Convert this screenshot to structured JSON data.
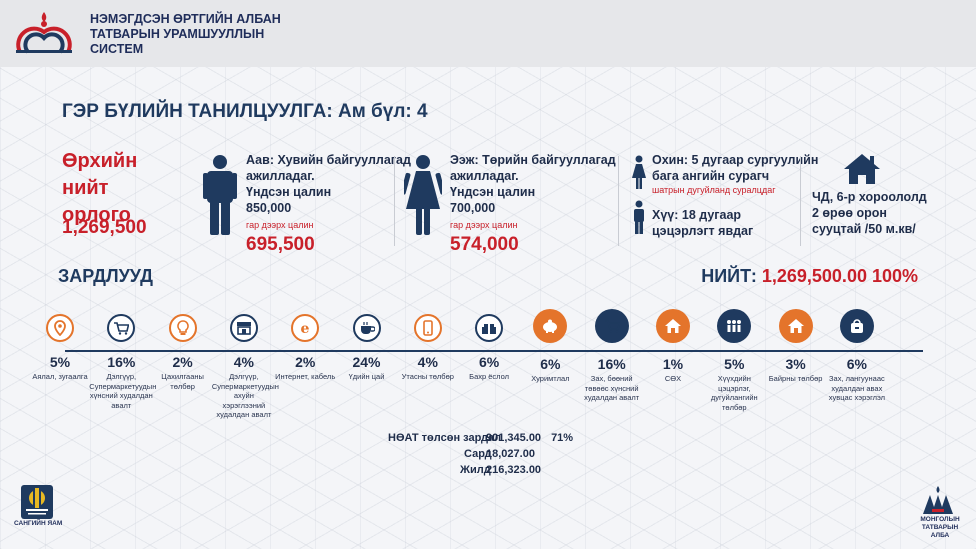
{
  "header": {
    "title_lines": [
      "НЭМЭГДСЭН ӨРТГИЙН АЛБАН",
      "ТАТВАРЫН УРАМШУУЛЛЫН",
      "СИСТЕМ"
    ]
  },
  "main_title": "ГЭР БҮЛИЙН ТАНИЛЦУУЛГА: Ам бүл: 4",
  "income": {
    "label": "Өрхийн нийт орлого",
    "value": "1,269,500"
  },
  "father": {
    "line1": "Аав: Хувийн байгууллагад",
    "line2": "ажилладаг.",
    "line3": "Үндсэн цалин",
    "base": "850,000",
    "net_label": "гар дээрх цалин",
    "net": "695,500"
  },
  "mother": {
    "line1": "Ээж: Төрийн байгууллагад",
    "line2": "ажилладаг.",
    "line3": "Үндсэн цалин",
    "base": "700,000",
    "net_label": "гар дээрх цалин",
    "net": "574,000"
  },
  "children": {
    "girl_line1": "Охин: 5 дугаар сургуулийн",
    "girl_line2": "бага ангийн сурагч",
    "girl_note": "шатрын дугуйланд суралцдаг",
    "boy_line1": "Хүү: 18 дугаар",
    "boy_line2": "цэцэрлэгт явдаг"
  },
  "housing": {
    "line1": "ЧД, 6-р хороололд",
    "line2": "2 өрөө орон",
    "line3": "сууцтай /50 м.кв/"
  },
  "expenses_title": "ЗАРДЛУУД",
  "total": {
    "label": "НИЙТ:",
    "value": "1,269,500.00 100%"
  },
  "expenses": [
    {
      "pct": "5%",
      "label": "Аялал, зугаалга",
      "icon": "location-pin-icon"
    },
    {
      "pct": "16%",
      "label": "Дэлгүүр, Супермаркетуудын хүнсний худалдан авалт",
      "icon": "shopping-cart-icon"
    },
    {
      "pct": "2%",
      "label": "Цахилгааны төлбөр",
      "icon": "lightbulb-icon"
    },
    {
      "pct": "4%",
      "label": "Дэлгүүр, Супермаркетуудын ахуйн хэрэглээний худалдан авалт",
      "icon": "store-icon"
    },
    {
      "pct": "2%",
      "label": "Интернет, кабель",
      "icon": "internet-icon"
    },
    {
      "pct": "24%",
      "label": "Үдийн цай",
      "icon": "coffee-cup-icon"
    },
    {
      "pct": "4%",
      "label": "Утасны төлбөр",
      "icon": "smartphone-icon"
    },
    {
      "pct": "6%",
      "label": "Бахр ёслол",
      "icon": "gift-icon"
    },
    {
      "pct": "6%",
      "label": "Хуримтлал",
      "icon": "piggy-bank-icon"
    },
    {
      "pct": "16%",
      "label": "Зах, бөөний төвөөс хүнсний худалдан авалт",
      "icon": "shopping-cart-icon"
    },
    {
      "pct": "1%",
      "label": "СӨХ",
      "icon": "house-icon"
    },
    {
      "pct": "5%",
      "label": "Хүүхдийн цэцэрлэг, дугуйлангийн төлбөр",
      "icon": "group-icon"
    },
    {
      "pct": "3%",
      "label": "Байрны төлбөр",
      "icon": "house-icon"
    },
    {
      "pct": "6%",
      "label": "Зах, лангуунаас худалдан авах хувцас хэрэглэл",
      "icon": "bag-icon"
    }
  ],
  "summary": {
    "vat_label": "НӨАТ төлсөн зардал",
    "vat_value": "901,345.00",
    "vat_pct": "71%",
    "sard_label": "Сард",
    "sard_value": "18,027.00",
    "jild_label": "Жилд",
    "jild_value": "216,323.00"
  },
  "footer": {
    "left_label": "САНГИЙН ЯАМ",
    "right_label_1": "МОНГОЛЫН",
    "right_label_2": "ТАТВАРЫН АЛБА"
  },
  "colors": {
    "navy": "#1f3a5f",
    "red": "#c8202a",
    "orange": "#e4742b"
  }
}
